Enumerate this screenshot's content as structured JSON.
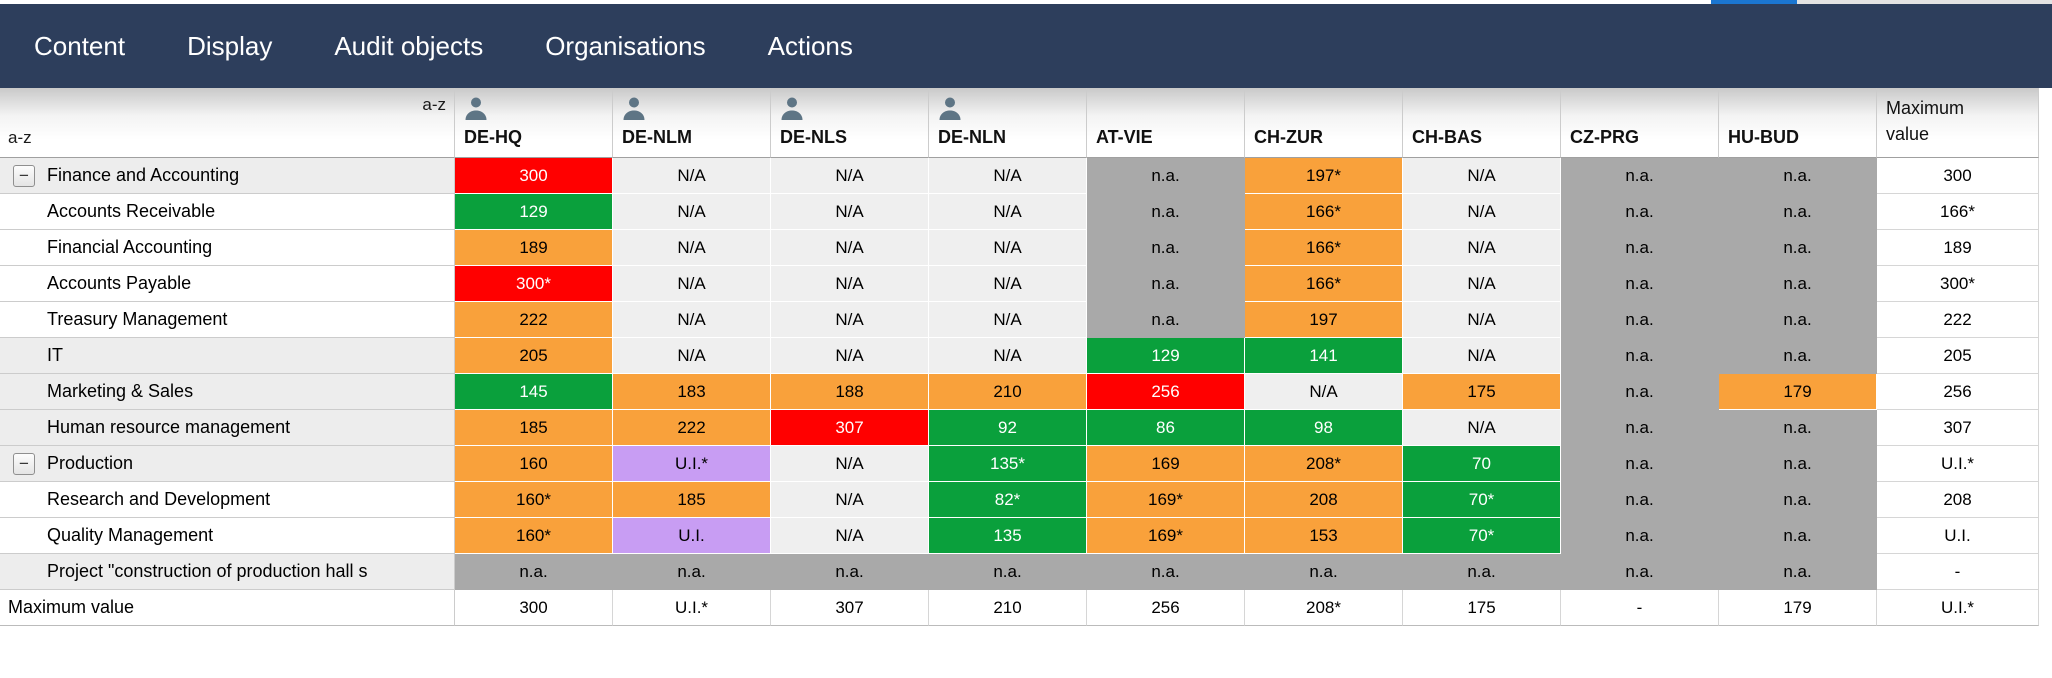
{
  "top_strip": {
    "scrollbar_color": "#1b76d1"
  },
  "menu": {
    "items": [
      "Content",
      "Display",
      "Audit objects",
      "Organisations",
      "Actions"
    ]
  },
  "header": {
    "sort_columns_label": "a-z",
    "sort_rows_label": "a-z",
    "columns": [
      {
        "label": "DE-HQ",
        "person": true
      },
      {
        "label": "DE-NLM",
        "person": true
      },
      {
        "label": "DE-NLS",
        "person": true
      },
      {
        "label": "DE-NLN",
        "person": true
      },
      {
        "label": "AT-VIE",
        "person": false
      },
      {
        "label": "CH-ZUR",
        "person": false
      },
      {
        "label": "CH-BAS",
        "person": false
      },
      {
        "label": "CZ-PRG",
        "person": false
      },
      {
        "label": "HU-BUD",
        "person": false
      },
      {
        "label": "Maximum value",
        "person": false,
        "lines": [
          "Maximum",
          "value"
        ]
      }
    ]
  },
  "palette": {
    "menu_bg": "#2d3e5c",
    "risk_red": "#ff0000",
    "risk_green": "#0aa03c",
    "risk_orange": "#f9a13b",
    "under_investigation_purple": "#c89df3",
    "not_audited_gray": "#a9a9a9",
    "not_applicable_light": "#efefef"
  },
  "rows": [
    {
      "label": "Finance and Accounting",
      "level": "top",
      "toggle": "−",
      "cells": [
        [
          "300",
          "red"
        ],
        [
          "N/A",
          "light"
        ],
        [
          "N/A",
          "light"
        ],
        [
          "N/A",
          "light"
        ],
        [
          "n.a.",
          "na"
        ],
        [
          "197*",
          "orange"
        ],
        [
          "N/A",
          "light"
        ],
        [
          "n.a.",
          "na"
        ],
        [
          "n.a.",
          "na"
        ],
        [
          "300",
          "plain"
        ]
      ]
    },
    {
      "label": "Accounts Receivable",
      "level": "child",
      "toggle": "",
      "cells": [
        [
          "129",
          "green"
        ],
        [
          "N/A",
          "light"
        ],
        [
          "N/A",
          "light"
        ],
        [
          "N/A",
          "light"
        ],
        [
          "n.a.",
          "na"
        ],
        [
          "166*",
          "orange"
        ],
        [
          "N/A",
          "light"
        ],
        [
          "n.a.",
          "na"
        ],
        [
          "n.a.",
          "na"
        ],
        [
          "166*",
          "plain"
        ]
      ]
    },
    {
      "label": "Financial Accounting",
      "level": "child",
      "toggle": "",
      "cells": [
        [
          "189",
          "orange"
        ],
        [
          "N/A",
          "light"
        ],
        [
          "N/A",
          "light"
        ],
        [
          "N/A",
          "light"
        ],
        [
          "n.a.",
          "na"
        ],
        [
          "166*",
          "orange"
        ],
        [
          "N/A",
          "light"
        ],
        [
          "n.a.",
          "na"
        ],
        [
          "n.a.",
          "na"
        ],
        [
          "189",
          "plain"
        ]
      ]
    },
    {
      "label": "Accounts Payable",
      "level": "child",
      "toggle": "",
      "cells": [
        [
          "300*",
          "red"
        ],
        [
          "N/A",
          "light"
        ],
        [
          "N/A",
          "light"
        ],
        [
          "N/A",
          "light"
        ],
        [
          "n.a.",
          "na"
        ],
        [
          "166*",
          "orange"
        ],
        [
          "N/A",
          "light"
        ],
        [
          "n.a.",
          "na"
        ],
        [
          "n.a.",
          "na"
        ],
        [
          "300*",
          "plain"
        ]
      ]
    },
    {
      "label": "Treasury Management",
      "level": "child",
      "toggle": "",
      "cells": [
        [
          "222",
          "orange"
        ],
        [
          "N/A",
          "light"
        ],
        [
          "N/A",
          "light"
        ],
        [
          "N/A",
          "light"
        ],
        [
          "n.a.",
          "na"
        ],
        [
          "197",
          "orange"
        ],
        [
          "N/A",
          "light"
        ],
        [
          "n.a.",
          "na"
        ],
        [
          "n.a.",
          "na"
        ],
        [
          "222",
          "plain"
        ]
      ]
    },
    {
      "label": "IT",
      "level": "top",
      "toggle": "",
      "cells": [
        [
          "205",
          "orange"
        ],
        [
          "N/A",
          "light"
        ],
        [
          "N/A",
          "light"
        ],
        [
          "N/A",
          "light"
        ],
        [
          "129",
          "green"
        ],
        [
          "141",
          "green"
        ],
        [
          "N/A",
          "light"
        ],
        [
          "n.a.",
          "na"
        ],
        [
          "n.a.",
          "na"
        ],
        [
          "205",
          "plain"
        ]
      ]
    },
    {
      "label": "Marketing & Sales",
      "level": "top",
      "toggle": "",
      "cells": [
        [
          "145",
          "green"
        ],
        [
          "183",
          "orange"
        ],
        [
          "188",
          "orange"
        ],
        [
          "210",
          "orange"
        ],
        [
          "256",
          "red"
        ],
        [
          "N/A",
          "light"
        ],
        [
          "175",
          "orange"
        ],
        [
          "n.a.",
          "na"
        ],
        [
          "179",
          "orange"
        ],
        [
          "256",
          "plain"
        ]
      ]
    },
    {
      "label": "Human resource management",
      "level": "top",
      "toggle": "",
      "cells": [
        [
          "185",
          "orange"
        ],
        [
          "222",
          "orange"
        ],
        [
          "307",
          "red"
        ],
        [
          "92",
          "green"
        ],
        [
          "86",
          "green"
        ],
        [
          "98",
          "green"
        ],
        [
          "N/A",
          "light"
        ],
        [
          "n.a.",
          "na"
        ],
        [
          "n.a.",
          "na"
        ],
        [
          "307",
          "plain"
        ]
      ]
    },
    {
      "label": "Production",
      "level": "top",
      "toggle": "−",
      "cells": [
        [
          "160",
          "orange"
        ],
        [
          "U.I.*",
          "purple"
        ],
        [
          "N/A",
          "light"
        ],
        [
          "135*",
          "green"
        ],
        [
          "169",
          "orange"
        ],
        [
          "208*",
          "orange"
        ],
        [
          "70",
          "green"
        ],
        [
          "n.a.",
          "na"
        ],
        [
          "n.a.",
          "na"
        ],
        [
          "U.I.*",
          "plain"
        ]
      ]
    },
    {
      "label": "Research and Development",
      "level": "child",
      "toggle": "",
      "cells": [
        [
          "160*",
          "orange"
        ],
        [
          "185",
          "orange"
        ],
        [
          "N/A",
          "light"
        ],
        [
          "82*",
          "green"
        ],
        [
          "169*",
          "orange"
        ],
        [
          "208",
          "orange"
        ],
        [
          "70*",
          "green"
        ],
        [
          "n.a.",
          "na"
        ],
        [
          "n.a.",
          "na"
        ],
        [
          "208",
          "plain"
        ]
      ]
    },
    {
      "label": "Quality Management",
      "level": "child",
      "toggle": "",
      "cells": [
        [
          "160*",
          "orange"
        ],
        [
          "U.I.",
          "purple"
        ],
        [
          "N/A",
          "light"
        ],
        [
          "135",
          "green"
        ],
        [
          "169*",
          "orange"
        ],
        [
          "153",
          "orange"
        ],
        [
          "70*",
          "green"
        ],
        [
          "n.a.",
          "na"
        ],
        [
          "n.a.",
          "na"
        ],
        [
          "U.I.",
          "plain"
        ]
      ]
    },
    {
      "label": "Project \"construction of production hall s",
      "level": "top",
      "toggle": "",
      "cells": [
        [
          "n.a.",
          "na"
        ],
        [
          "n.a.",
          "na"
        ],
        [
          "n.a.",
          "na"
        ],
        [
          "n.a.",
          "na"
        ],
        [
          "n.a.",
          "na"
        ],
        [
          "n.a.",
          "na"
        ],
        [
          "n.a.",
          "na"
        ],
        [
          "n.a.",
          "na"
        ],
        [
          "n.a.",
          "na"
        ],
        [
          "-",
          "plain"
        ]
      ]
    }
  ],
  "footer_row": {
    "label": "Maximum value",
    "cells": [
      "300",
      "U.I.*",
      "307",
      "210",
      "256",
      "208*",
      "175",
      "-",
      "179",
      "U.I.*"
    ]
  }
}
